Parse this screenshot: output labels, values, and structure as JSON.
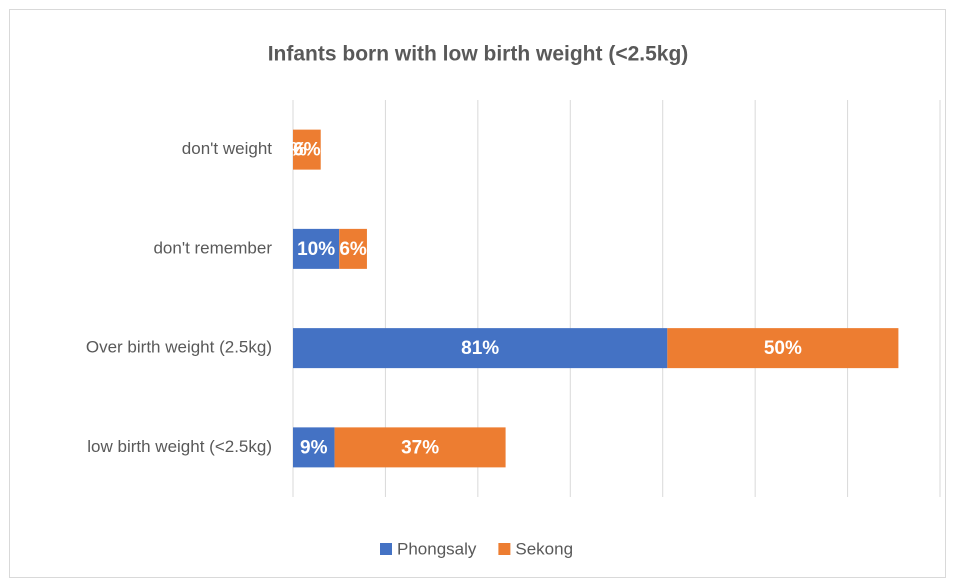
{
  "chart_data": {
    "type": "stacked-bar-horizontal",
    "title": "Infants born with low birth weight (<2.5kg)",
    "categories": [
      "don't weight",
      "don't remember",
      "Over birth weight (2.5kg)",
      "low birth weight (<2.5kg)"
    ],
    "series": [
      {
        "name": "Phongsaly",
        "color": "#4472c4",
        "values": [
          0,
          10,
          81,
          9
        ],
        "value_labels": [
          "0%",
          "10%",
          "81%",
          "9%"
        ]
      },
      {
        "name": "Sekong",
        "color": "#ed7d31",
        "values": [
          6,
          6,
          50,
          37
        ],
        "value_labels": [
          "6%",
          "6%",
          "50%",
          "37%"
        ]
      }
    ],
    "xlim": [
      0,
      140
    ],
    "xticks": [
      0,
      20,
      40,
      60,
      80,
      100,
      120,
      140
    ],
    "grid": true,
    "legend": "bottom"
  }
}
